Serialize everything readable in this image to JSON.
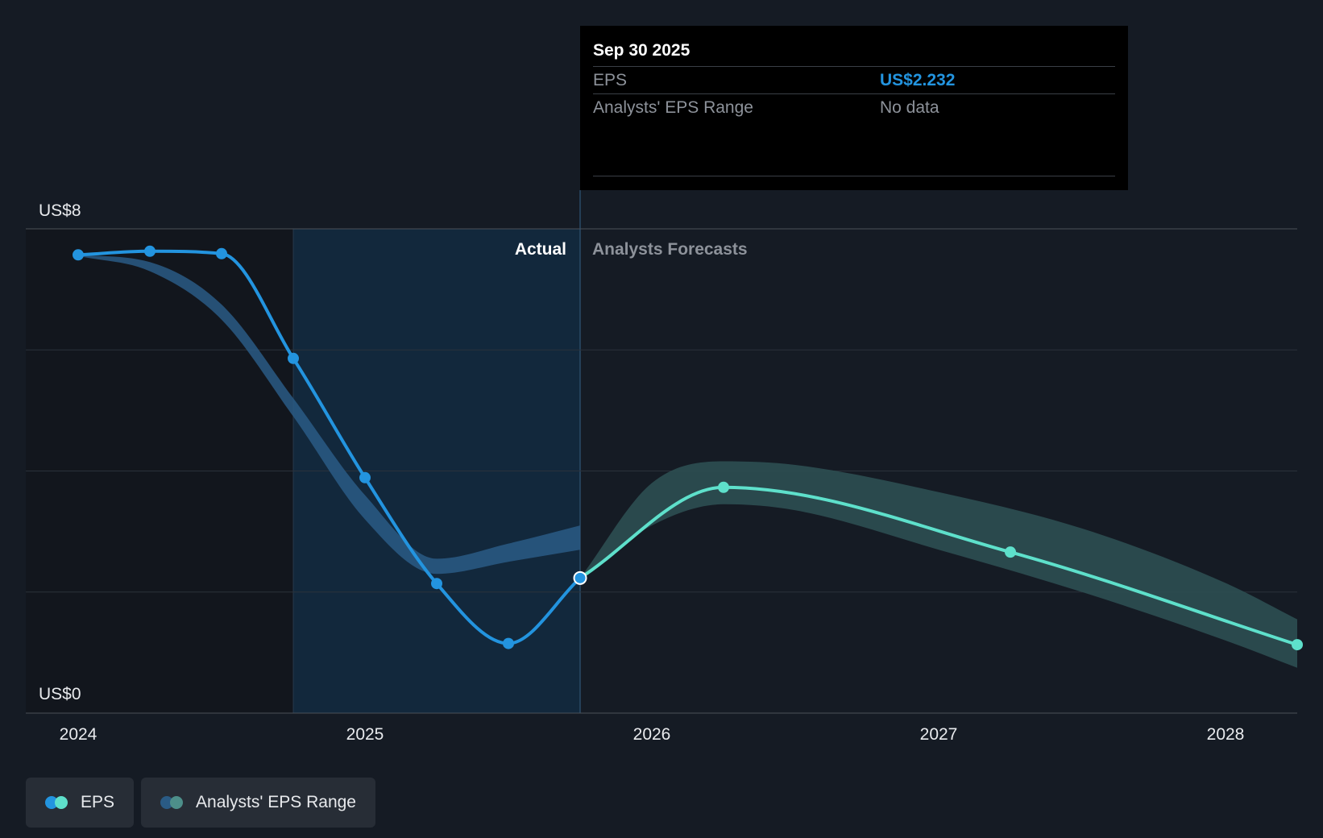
{
  "chart_data": {
    "type": "line",
    "title": "",
    "y_axis": {
      "min": 0,
      "max": 8,
      "tick_labels": [
        "US$8",
        "US$0"
      ]
    },
    "x_axis": {
      "tick_labels": [
        "2024",
        "2025",
        "2026",
        "2027",
        "2028"
      ]
    },
    "grid": true,
    "region_labels": {
      "actual": "Actual",
      "forecast": "Analysts Forecasts"
    },
    "series": [
      {
        "name": "EPS",
        "kind": "actual",
        "color": "#2394df",
        "points": [
          {
            "x": 2024.0,
            "y": 7.57
          },
          {
            "x": 2024.25,
            "y": 7.63
          },
          {
            "x": 2024.5,
            "y": 7.59
          },
          {
            "x": 2024.75,
            "y": 5.86
          },
          {
            "x": 2025.0,
            "y": 3.89
          },
          {
            "x": 2025.25,
            "y": 2.14
          },
          {
            "x": 2025.5,
            "y": 1.15
          },
          {
            "x": 2025.75,
            "y": 2.232
          }
        ]
      },
      {
        "name": "EPS",
        "kind": "forecast",
        "color": "#5ee0cb",
        "points": [
          {
            "x": 2025.75,
            "y": 2.232
          },
          {
            "x": 2026.25,
            "y": 3.73
          },
          {
            "x": 2027.25,
            "y": 2.66
          },
          {
            "x": 2028.25,
            "y": 1.13
          }
        ]
      },
      {
        "name": "Analysts' EPS Range",
        "kind": "past_range",
        "color": "#2a5b85",
        "x": [
          2024.0,
          2024.25,
          2024.5,
          2024.75,
          2025.0,
          2025.25,
          2025.5,
          2025.75
        ],
        "low": [
          7.55,
          7.3,
          6.5,
          4.9,
          3.2,
          2.3,
          2.5,
          2.7
        ],
        "high": [
          7.57,
          7.45,
          6.75,
          5.2,
          3.6,
          2.55,
          2.8,
          3.1
        ]
      },
      {
        "name": "Analysts' EPS Range",
        "kind": "forecast_range",
        "color": "#2c4f52",
        "x": [
          2025.75,
          2026.0,
          2026.25,
          2026.5,
          2027.0,
          2027.5,
          2028.0,
          2028.25
        ],
        "low": [
          2.232,
          3.1,
          3.45,
          3.35,
          2.7,
          2.0,
          1.2,
          0.75
        ],
        "high": [
          2.232,
          3.8,
          4.16,
          4.1,
          3.65,
          3.05,
          2.15,
          1.55
        ]
      }
    ],
    "tooltip": {
      "date": "Sep 30 2025",
      "rows": [
        {
          "label": "EPS",
          "value": "US$2.232"
        },
        {
          "label": "Analysts' EPS Range",
          "value": "No data"
        }
      ]
    },
    "legend": [
      {
        "label": "EPS",
        "colors": [
          "#2394df",
          "#5ee0cb"
        ]
      },
      {
        "label": "Analysts' EPS Range",
        "colors": [
          "#2a5b85",
          "#4d8f8a"
        ]
      }
    ]
  }
}
